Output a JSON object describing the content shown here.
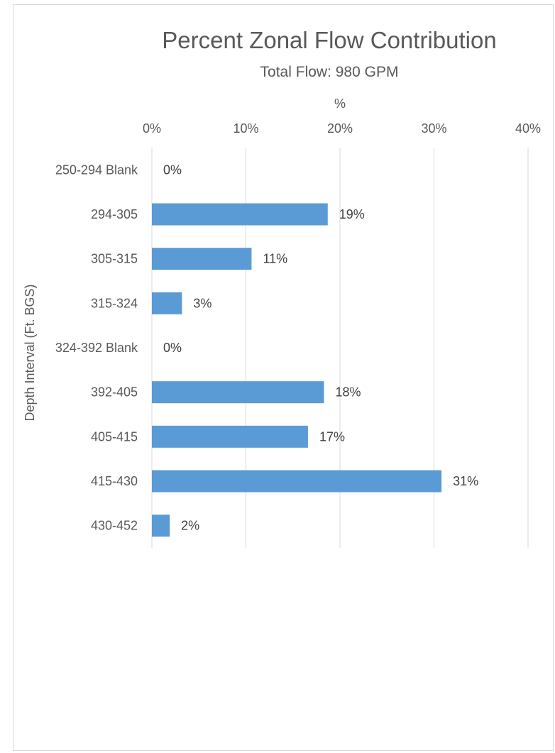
{
  "chart_data": {
    "type": "bar",
    "orientation": "horizontal",
    "title": "Percent Zonal Flow Contribution",
    "subtitle": "Total Flow: 980 GPM",
    "xlabel": "%",
    "ylabel": "Depth Interval (Ft. BGS)",
    "xlim": [
      0,
      40
    ],
    "xticks": [
      0,
      10,
      20,
      30,
      40
    ],
    "xtick_labels": [
      "0%",
      "10%",
      "20%",
      "30%",
      "40%"
    ],
    "x_axis_position": "top",
    "grid": "vertical",
    "categories": [
      "250-294 Blank",
      "294-305",
      "305-315",
      "315-324",
      "324-392 Blank",
      "392-405",
      "405-415",
      "415-430",
      "430-452"
    ],
    "values": [
      0,
      18.7,
      10.6,
      3.2,
      0,
      18.3,
      16.6,
      30.8,
      1.9
    ],
    "data_labels": [
      "0%",
      "19%",
      "11%",
      "3%",
      "0%",
      "18%",
      "17%",
      "31%",
      "2%"
    ],
    "bar_color": "#5B9BD5"
  }
}
